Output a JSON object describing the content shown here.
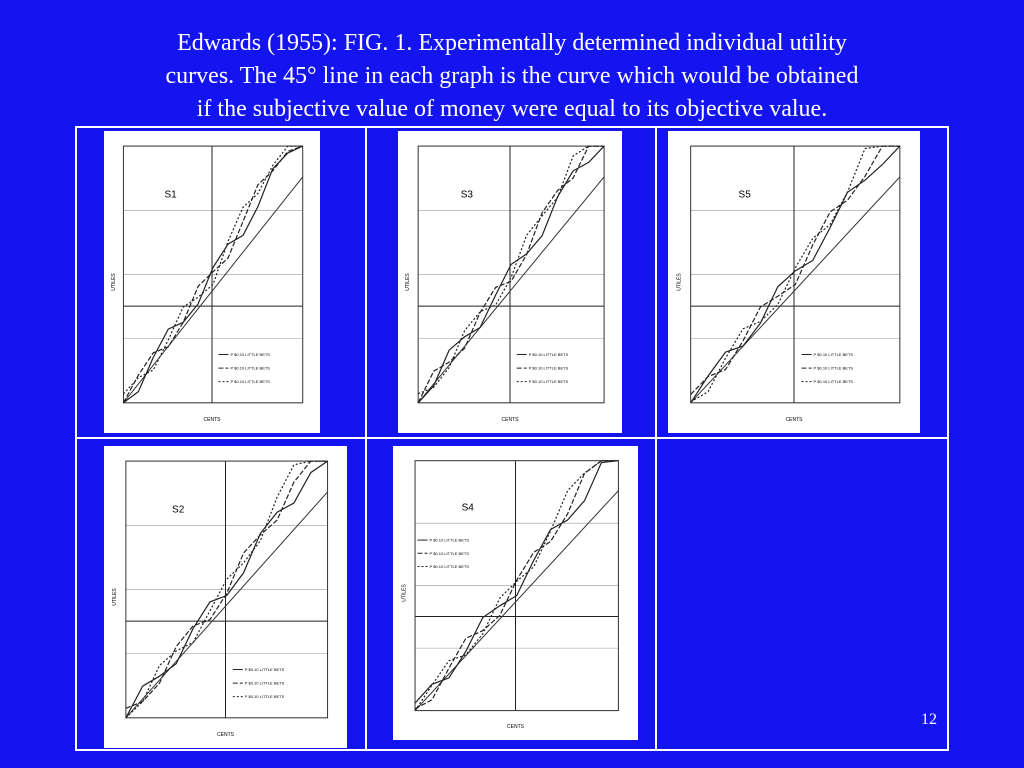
{
  "header": {
    "title_lines": [
      "Edwards (1955): FIG. 1. Experimentally determined individual utility",
      "curves. The 45°    line in each graph is the curve which would be obtained",
      "if the subjective value of money were equal to its objective value."
    ]
  },
  "panels": [
    {
      "label": "S1",
      "y_axis": "UTILES",
      "x_axis": "CENTS"
    },
    {
      "label": "S3",
      "y_axis": "UTILES",
      "x_axis": "CENTS"
    },
    {
      "label": "S5",
      "y_axis": "UTILES",
      "x_axis": "CENTS"
    },
    {
      "label": "S2",
      "y_axis": "UTILES",
      "x_axis": "CENTS"
    },
    {
      "label": "S4",
      "y_axis": "UTILES",
      "x_axis": "CENTS"
    }
  ],
  "legend": [
    "P $0.10 LITTLE BETS",
    "P $0.10 LITTLE BETS",
    "P $0.10 LITTLE BETS"
  ],
  "page_number": "12"
}
